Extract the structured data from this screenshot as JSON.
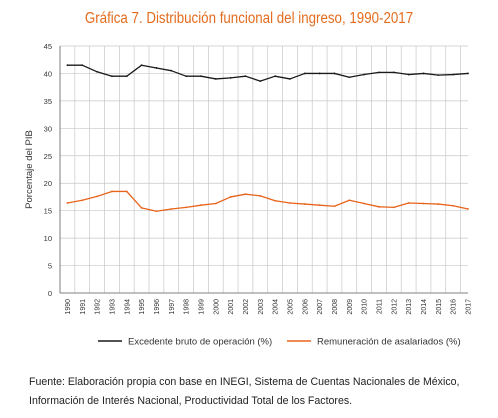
{
  "chart_data": {
    "type": "line",
    "title": "Gráfica 7. Distribución funcional del ingreso, 1990-2017",
    "ylabel": "Porcentaje del PIB",
    "xlabel": "",
    "ylim": [
      0,
      45
    ],
    "yticks": [
      0,
      5,
      10,
      15,
      20,
      25,
      30,
      35,
      40,
      45
    ],
    "grid": true,
    "legend": "bottom",
    "x": [
      "1990",
      "1991",
      "1992",
      "1993",
      "1994",
      "1995",
      "1996",
      "1997",
      "1998",
      "1999",
      "2000",
      "2001",
      "2002",
      "2003",
      "2004",
      "2005",
      "2006",
      "2007",
      "2008",
      "2009",
      "2010",
      "2011",
      "2012",
      "2013",
      "2014",
      "2015",
      "2016",
      "2017"
    ],
    "series": [
      {
        "name": "Excedente bruto de operación (%)",
        "color": "#1a1a1a",
        "values": [
          41.5,
          41.5,
          40.3,
          39.5,
          39.5,
          41.5,
          41.0,
          40.5,
          39.5,
          39.5,
          39.0,
          39.2,
          39.5,
          38.6,
          39.5,
          39.0,
          40.0,
          40.0,
          40.0,
          39.3,
          39.8,
          40.2,
          40.2,
          39.8,
          40.0,
          39.7,
          39.8,
          40.0
        ]
      },
      {
        "name": "Remuneración de asalariados (%)",
        "color": "#e8641b",
        "values": [
          16.4,
          16.9,
          17.6,
          18.5,
          18.5,
          15.5,
          14.9,
          15.3,
          15.6,
          16.0,
          16.3,
          17.5,
          18.0,
          17.7,
          16.8,
          16.4,
          16.2,
          16.0,
          15.8,
          16.9,
          16.3,
          15.7,
          15.6,
          16.4,
          16.3,
          16.2,
          15.9,
          15.3
        ]
      }
    ]
  },
  "source": {
    "line1": "Fuente: Elaboración propia con base en INEGI, Sistema de Cuentas Nacionales de México,",
    "line2": "Información de Interés Nacional, Productividad Total de los Factores."
  }
}
